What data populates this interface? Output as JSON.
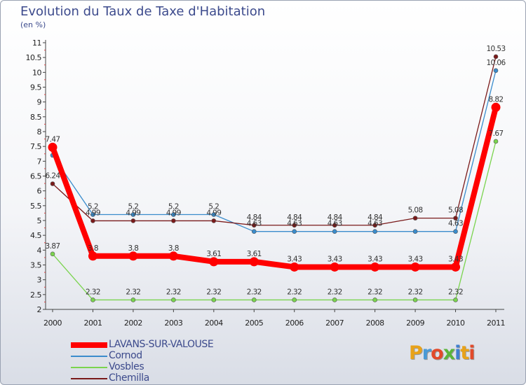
{
  "header": {
    "title": "Evolution du Taux de Taxe d'Habitation",
    "unit": "(en %)"
  },
  "logo": {
    "text": "Proxiti",
    "letter_colors": [
      "#e8a21a",
      "#4a9ad6",
      "#e24a2a",
      "#5ab53a",
      "#3f7fd0",
      "#e8a21a",
      "#e24a2a"
    ]
  },
  "chart_data": {
    "type": "line",
    "title": "Evolution du Taux de Taxe d'Habitation",
    "ylabel": "(en %)",
    "xlabel": "",
    "x": [
      "2000",
      "2001",
      "2002",
      "2003",
      "2004",
      "2005",
      "2006",
      "2007",
      "2008",
      "2009",
      "2010",
      "2011"
    ],
    "ylim": [
      2,
      11
    ],
    "yticks": [
      "2",
      "2.5",
      "3",
      "3.5",
      "4",
      "4.5",
      "5",
      "5.5",
      "6",
      "6.5",
      "7",
      "7.5",
      "8",
      "8.5",
      "9",
      "9.5",
      "10",
      "10.5",
      "11"
    ],
    "grid": false,
    "series": [
      {
        "name": "LAVANS-SUR-VALOUSE",
        "color": "#ff0000",
        "values": [
          7.47,
          3.8,
          3.8,
          3.8,
          3.61,
          3.61,
          3.43,
          3.43,
          3.43,
          3.43,
          3.43,
          8.82
        ],
        "labels": [
          "7.47",
          "3.8",
          "3.8",
          "3.8",
          "3.61",
          "3.61",
          "3.43",
          "3.43",
          "3.43",
          "3.43",
          "3.43",
          "8.82"
        ]
      },
      {
        "name": "Cornod",
        "color": "#3a8ccc",
        "values": [
          7.2,
          5.2,
          5.2,
          5.2,
          5.2,
          4.63,
          4.63,
          4.63,
          4.63,
          4.63,
          4.63,
          10.06
        ],
        "labels": [
          "",
          "5.2",
          "5.2",
          "5.2",
          "5.2",
          "4.63",
          "4.63",
          "4.63",
          "4.63",
          "",
          "4.63",
          "10.06"
        ]
      },
      {
        "name": "Vosbles",
        "color": "#7ad44e",
        "values": [
          3.87,
          2.32,
          2.32,
          2.32,
          2.32,
          2.32,
          2.32,
          2.32,
          2.32,
          2.32,
          2.32,
          7.67
        ],
        "labels": [
          "3.87",
          "2.32",
          "2.32",
          "2.32",
          "2.32",
          "2.32",
          "2.32",
          "2.32",
          "2.32",
          "2.32",
          "2.32",
          "7.67"
        ]
      },
      {
        "name": "Chemilla",
        "color": "#7a1a1a",
        "values": [
          6.24,
          4.99,
          4.99,
          4.99,
          4.99,
          4.84,
          4.84,
          4.84,
          4.84,
          5.08,
          5.08,
          10.53
        ],
        "labels": [
          "6.24",
          "4.99",
          "4.99",
          "4.99",
          "4.99",
          "4.84",
          "4.84",
          "4.84",
          "4.84",
          "5.08",
          "5.08",
          "10.53"
        ]
      }
    ],
    "legend": "bottom-left"
  }
}
